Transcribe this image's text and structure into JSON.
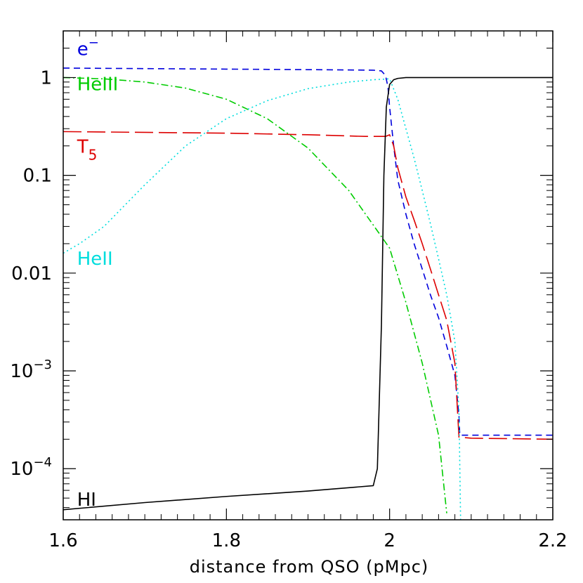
{
  "chart_data": {
    "type": "line",
    "title": "",
    "xlabel": "distance from QSO (pMpc)",
    "ylabel": "",
    "xlim": [
      1.6,
      2.2
    ],
    "ylim": [
      3e-05,
      3.0
    ],
    "yscale": "log",
    "grid": false,
    "legend": "inline labels",
    "x_ticks": [
      {
        "value": 1.6,
        "label": "1.6"
      },
      {
        "value": 1.8,
        "label": "1.8"
      },
      {
        "value": 2.0,
        "label": "2"
      },
      {
        "value": 2.2,
        "label": "2.2"
      }
    ],
    "y_ticks": [
      {
        "value": 0.0001,
        "base": "10",
        "exp": "−4",
        "label": ""
      },
      {
        "value": 0.001,
        "base": "10",
        "exp": "−3",
        "label": ""
      },
      {
        "value": 0.01,
        "base": "",
        "exp": "",
        "label": "0.01"
      },
      {
        "value": 0.1,
        "base": "",
        "exp": "",
        "label": "0.1"
      },
      {
        "value": 1,
        "base": "",
        "exp": "",
        "label": "1"
      }
    ],
    "series": [
      {
        "name": "e⁻",
        "label_base": "e",
        "label_sup": "−",
        "label_sub": "",
        "label_at": [
          1.617,
          1.7
        ],
        "color": "#0000dd",
        "dash": "9,6",
        "x": [
          1.6,
          1.7,
          1.8,
          1.9,
          1.98,
          1.99,
          1.995,
          1.998,
          2.0,
          2.005,
          2.01,
          2.02,
          2.03,
          2.04,
          2.05,
          2.06,
          2.07,
          2.08,
          2.085,
          2.086,
          2.1,
          2.2
        ],
        "y": [
          1.25,
          1.235,
          1.22,
          1.205,
          1.19,
          1.17,
          1.05,
          0.8,
          0.5,
          0.2,
          0.09,
          0.04,
          0.02,
          0.011,
          0.006,
          0.0035,
          0.0018,
          0.0009,
          0.00035,
          0.00022,
          0.00022,
          0.00022
        ]
      },
      {
        "name": "HeIII",
        "label_base": "HeIII",
        "label_sup": "",
        "label_sub": "",
        "label_at": [
          1.617,
          0.74
        ],
        "color": "#00cc00",
        "dash": "10,4,2,4",
        "x": [
          1.6,
          1.65,
          1.7,
          1.75,
          1.8,
          1.85,
          1.9,
          1.95,
          2.0,
          2.02,
          2.04,
          2.06,
          2.07
        ],
        "y": [
          1.0,
          0.97,
          0.9,
          0.78,
          0.6,
          0.38,
          0.19,
          0.07,
          0.018,
          0.005,
          0.0012,
          0.00022,
          3.5e-05
        ]
      },
      {
        "name": "T₅",
        "label_base": "T",
        "label_sup": "",
        "label_sub": "5",
        "label_at": [
          1.617,
          0.17
        ],
        "color": "#dd0000",
        "dash": "26,8",
        "x": [
          1.6,
          1.7,
          1.8,
          1.9,
          1.97,
          1.995,
          2.0,
          2.005,
          2.01,
          2.02,
          2.03,
          2.04,
          2.05,
          2.06,
          2.07,
          2.08,
          2.085,
          2.086,
          2.1,
          2.2
        ],
        "y": [
          0.28,
          0.275,
          0.27,
          0.26,
          0.25,
          0.25,
          0.26,
          0.2,
          0.12,
          0.06,
          0.035,
          0.02,
          0.011,
          0.006,
          0.0033,
          0.0012,
          0.00021,
          0.00021,
          0.000205,
          0.0002
        ]
      },
      {
        "name": "HeII",
        "label_base": "HeII",
        "label_sup": "",
        "label_sub": "",
        "label_at": [
          1.617,
          0.0122
        ],
        "color": "#00dddd",
        "dash": "2,4",
        "x": [
          1.6,
          1.62,
          1.65,
          1.7,
          1.75,
          1.8,
          1.85,
          1.9,
          1.95,
          1.98,
          2.0,
          2.01,
          2.02,
          2.03,
          2.04,
          2.05,
          2.06,
          2.07,
          2.08,
          2.085,
          2.087
        ],
        "y": [
          0.016,
          0.02,
          0.03,
          0.08,
          0.2,
          0.38,
          0.58,
          0.77,
          0.9,
          0.95,
          0.97,
          0.6,
          0.3,
          0.15,
          0.07,
          0.032,
          0.014,
          0.006,
          0.002,
          0.0004,
          3e-05
        ]
      },
      {
        "name": "HI",
        "label_base": "HI",
        "label_sup": "",
        "label_sub": "",
        "label_at": [
          1.617,
          4.18e-05
        ],
        "color": "#000000",
        "dash": "",
        "x": [
          1.6,
          1.7,
          1.8,
          1.9,
          1.98,
          1.985,
          1.99,
          1.993,
          1.996,
          2.0,
          2.005,
          2.01,
          2.02,
          2.05,
          2.1,
          2.2
        ],
        "y": [
          3.8e-05,
          4.5e-05,
          5.2e-05,
          5.9e-05,
          6.7e-05,
          0.0001,
          0.003,
          0.1,
          0.5,
          0.85,
          0.95,
          0.98,
          1.0,
          1.0,
          1.0,
          1.0
        ]
      }
    ]
  }
}
